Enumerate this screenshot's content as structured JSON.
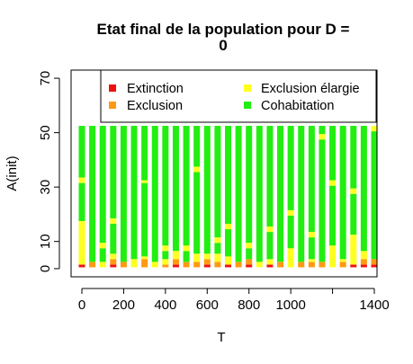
{
  "chart_data": {
    "type": "bar",
    "title_line1": "Etat final de la population pour D =",
    "title_line2": "0",
    "xlabel": "T",
    "ylabel": "A(init)",
    "x_ticks": [
      "0",
      "200",
      "400",
      "600",
      "800",
      "1000",
      "1400"
    ],
    "y_ticks": [
      "0",
      "10",
      "30",
      "50",
      "70"
    ],
    "y_tick_values": [
      0,
      10,
      30,
      50,
      70
    ],
    "ylim": [
      -3,
      73
    ],
    "legend_position": "top-right",
    "legend": [
      {
        "label": "Extinction",
        "color": "#ee1111"
      },
      {
        "label": "Exclusion élargie",
        "color": "#ffff22"
      },
      {
        "label": "Exclusion",
        "color": "#ff9911"
      },
      {
        "label": "Cohabitation",
        "color": "#22ee11"
      }
    ],
    "stack_top": 52,
    "bars_estimated": [
      {
        "t": 0,
        "segments": [
          {
            "c": 0,
            "n": 1
          },
          {
            "c": 1,
            "n": 16
          },
          {
            "c": 3,
            "n": 14
          },
          {
            "c": 1,
            "n": 2
          },
          {
            "c": 3,
            "n": 19
          }
        ]
      },
      {
        "t": 50,
        "segments": [
          {
            "c": 2,
            "n": 2
          },
          {
            "c": 3,
            "n": 50
          }
        ]
      },
      {
        "t": 100,
        "segments": [
          {
            "c": 1,
            "n": 2
          },
          {
            "c": 3,
            "n": 5
          },
          {
            "c": 1,
            "n": 2
          },
          {
            "c": 3,
            "n": 43
          }
        ]
      },
      {
        "t": 150,
        "segments": [
          {
            "c": 0,
            "n": 1
          },
          {
            "c": 2,
            "n": 2
          },
          {
            "c": 1,
            "n": 2
          },
          {
            "c": 3,
            "n": 11
          },
          {
            "c": 1,
            "n": 2
          },
          {
            "c": 3,
            "n": 34
          }
        ]
      },
      {
        "t": 200,
        "segments": [
          {
            "c": 2,
            "n": 2
          },
          {
            "c": 3,
            "n": 50
          }
        ]
      },
      {
        "t": 250,
        "segments": [
          {
            "c": 1,
            "n": 3
          },
          {
            "c": 3,
            "n": 49
          }
        ]
      },
      {
        "t": 300,
        "segments": [
          {
            "c": 2,
            "n": 3
          },
          {
            "c": 1,
            "n": 1
          },
          {
            "c": 3,
            "n": 27
          },
          {
            "c": 1,
            "n": 1
          },
          {
            "c": 3,
            "n": 20
          }
        ]
      },
      {
        "t": 350,
        "segments": [
          {
            "c": 1,
            "n": 2
          },
          {
            "c": 3,
            "n": 50
          }
        ]
      },
      {
        "t": 400,
        "segments": [
          {
            "c": 2,
            "n": 1
          },
          {
            "c": 1,
            "n": 2
          },
          {
            "c": 3,
            "n": 3
          },
          {
            "c": 1,
            "n": 2
          },
          {
            "c": 3,
            "n": 44
          }
        ]
      },
      {
        "t": 450,
        "segments": [
          {
            "c": 0,
            "n": 1
          },
          {
            "c": 2,
            "n": 2
          },
          {
            "c": 1,
            "n": 3
          },
          {
            "c": 3,
            "n": 46
          }
        ]
      },
      {
        "t": 500,
        "segments": [
          {
            "c": 2,
            "n": 2
          },
          {
            "c": 3,
            "n": 4
          },
          {
            "c": 1,
            "n": 2
          },
          {
            "c": 3,
            "n": 44
          }
        ]
      },
      {
        "t": 550,
        "segments": [
          {
            "c": 2,
            "n": 2
          },
          {
            "c": 1,
            "n": 3
          },
          {
            "c": 3,
            "n": 30
          },
          {
            "c": 1,
            "n": 2
          },
          {
            "c": 3,
            "n": 15
          }
        ]
      },
      {
        "t": 600,
        "segments": [
          {
            "c": 0,
            "n": 1
          },
          {
            "c": 2,
            "n": 2
          },
          {
            "c": 1,
            "n": 2
          },
          {
            "c": 3,
            "n": 47
          }
        ]
      },
      {
        "t": 650,
        "segments": [
          {
            "c": 2,
            "n": 2
          },
          {
            "c": 1,
            "n": 3
          },
          {
            "c": 3,
            "n": 4
          },
          {
            "c": 1,
            "n": 2
          },
          {
            "c": 3,
            "n": 41
          }
        ]
      },
      {
        "t": 700,
        "segments": [
          {
            "c": 0,
            "n": 1
          },
          {
            "c": 1,
            "n": 3
          },
          {
            "c": 3,
            "n": 10
          },
          {
            "c": 1,
            "n": 2
          },
          {
            "c": 3,
            "n": 36
          }
        ]
      },
      {
        "t": 750,
        "segments": [
          {
            "c": 2,
            "n": 2
          },
          {
            "c": 3,
            "n": 50
          }
        ]
      },
      {
        "t": 800,
        "segments": [
          {
            "c": 0,
            "n": 1
          },
          {
            "c": 2,
            "n": 2
          },
          {
            "c": 3,
            "n": 4
          },
          {
            "c": 1,
            "n": 2
          },
          {
            "c": 3,
            "n": 43
          }
        ]
      },
      {
        "t": 850,
        "segments": [
          {
            "c": 1,
            "n": 2
          },
          {
            "c": 3,
            "n": 50
          }
        ]
      },
      {
        "t": 900,
        "segments": [
          {
            "c": 0,
            "n": 1
          },
          {
            "c": 1,
            "n": 2
          },
          {
            "c": 3,
            "n": 10
          },
          {
            "c": 1,
            "n": 2
          },
          {
            "c": 3,
            "n": 37
          }
        ]
      },
      {
        "t": 950,
        "segments": [
          {
            "c": 2,
            "n": 2
          },
          {
            "c": 3,
            "n": 50
          }
        ]
      },
      {
        "t": 1000,
        "segments": [
          {
            "c": 1,
            "n": 7
          },
          {
            "c": 3,
            "n": 12
          },
          {
            "c": 1,
            "n": 2
          },
          {
            "c": 3,
            "n": 31
          }
        ]
      },
      {
        "t": 1050,
        "segments": [
          {
            "c": 2,
            "n": 2
          },
          {
            "c": 3,
            "n": 50
          }
        ]
      },
      {
        "t": 1100,
        "segments": [
          {
            "c": 2,
            "n": 2
          },
          {
            "c": 1,
            "n": 1
          },
          {
            "c": 3,
            "n": 8
          },
          {
            "c": 1,
            "n": 2
          },
          {
            "c": 3,
            "n": 39
          }
        ]
      },
      {
        "t": 1150,
        "segments": [
          {
            "c": 2,
            "n": 2
          },
          {
            "c": 3,
            "n": 45
          },
          {
            "c": 1,
            "n": 2
          },
          {
            "c": 3,
            "n": 3
          }
        ]
      },
      {
        "t": 1200,
        "segments": [
          {
            "c": 1,
            "n": 8
          },
          {
            "c": 3,
            "n": 22
          },
          {
            "c": 1,
            "n": 2
          },
          {
            "c": 3,
            "n": 20
          }
        ]
      },
      {
        "t": 1250,
        "segments": [
          {
            "c": 2,
            "n": 2
          },
          {
            "c": 1,
            "n": 1
          },
          {
            "c": 3,
            "n": 49
          }
        ]
      },
      {
        "t": 1300,
        "segments": [
          {
            "c": 0,
            "n": 1
          },
          {
            "c": 1,
            "n": 11
          },
          {
            "c": 3,
            "n": 15
          },
          {
            "c": 1,
            "n": 2
          },
          {
            "c": 3,
            "n": 23
          }
        ]
      },
      {
        "t": 1350,
        "segments": [
          {
            "c": 0,
            "n": 1
          },
          {
            "c": 2,
            "n": 2
          },
          {
            "c": 1,
            "n": 3
          },
          {
            "c": 3,
            "n": 46
          }
        ]
      },
      {
        "t": 1400,
        "segments": [
          {
            "c": 0,
            "n": 1
          },
          {
            "c": 2,
            "n": 2
          },
          {
            "c": 3,
            "n": 47
          },
          {
            "c": 1,
            "n": 2
          }
        ]
      }
    ]
  }
}
